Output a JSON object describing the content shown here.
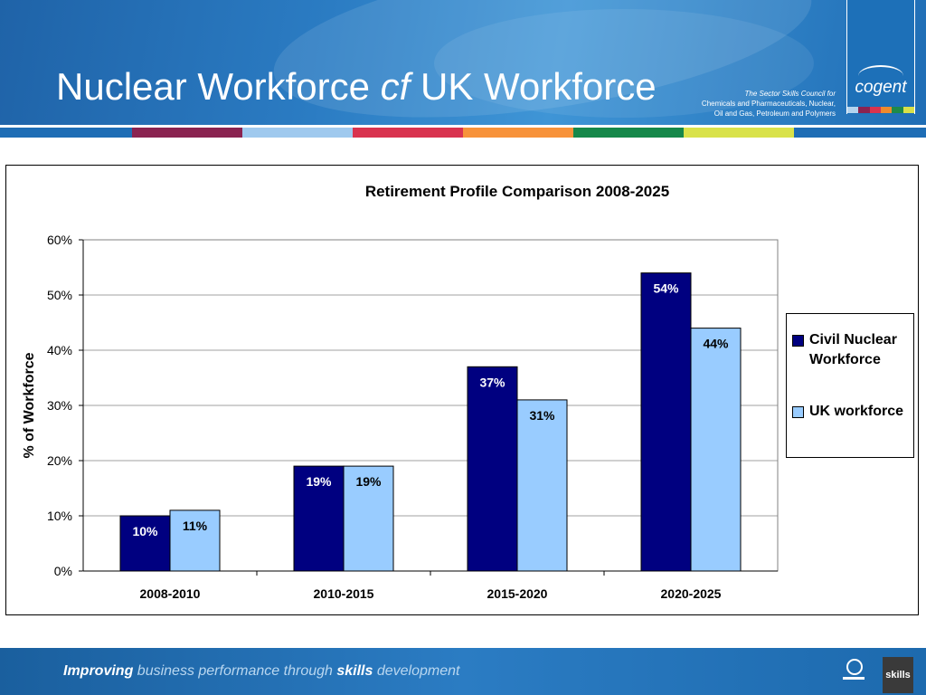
{
  "header": {
    "title_part1": "Nuclear Workforce ",
    "title_italic": "cf",
    "title_part2": " UK Workforce",
    "council_line1": "The Sector Skills Council for",
    "council_line2": "Chemicals and Pharmaceuticals, Nuclear,",
    "council_line3": "Oil and Gas, Petroleum and Polymers",
    "logo_text": "cogent",
    "logo_stripe_colors": [
      "#b3d4ef",
      "#8a2350",
      "#d9334f",
      "#ef8a2e",
      "#1e8a4a",
      "#d8e04a"
    ]
  },
  "color_bar": [
    "#1e6db5",
    "#8a2350",
    "#9fc9ee",
    "#d9334f",
    "#f7923a",
    "#16884a",
    "#d9e24a",
    "#1e6db5"
  ],
  "chart_data": {
    "type": "bar",
    "title": "Retirement Profile Comparison 2008-2025",
    "ylabel": "% of Workforce",
    "xlabel": "",
    "categories": [
      "2008-2010",
      "2010-2015",
      "2015-2020",
      "2020-2025"
    ],
    "ylim": [
      0,
      60
    ],
    "yticks": [
      "0%",
      "10%",
      "20%",
      "30%",
      "40%",
      "50%",
      "60%"
    ],
    "grid": true,
    "legend_position": "right",
    "series": [
      {
        "name": "Civil Nuclear Workforce",
        "values": [
          10,
          19,
          37,
          54
        ],
        "labels": [
          "10%",
          "19%",
          "37%",
          "54%"
        ],
        "color": "#000080"
      },
      {
        "name": "UK workforce",
        "values": [
          11,
          19,
          31,
          44
        ],
        "labels": [
          "11%",
          "19%",
          "31%",
          "44%"
        ],
        "color": "#99ccff"
      }
    ]
  },
  "legend": {
    "item1_label": "Civil Nuclear Workforce",
    "item2_label": "UK workforce"
  },
  "footer": {
    "tagline_word1": "Improving",
    "tagline_mid1": " business performance through ",
    "tagline_word2": "skills",
    "tagline_end": " development",
    "logo2_text": "skills"
  }
}
